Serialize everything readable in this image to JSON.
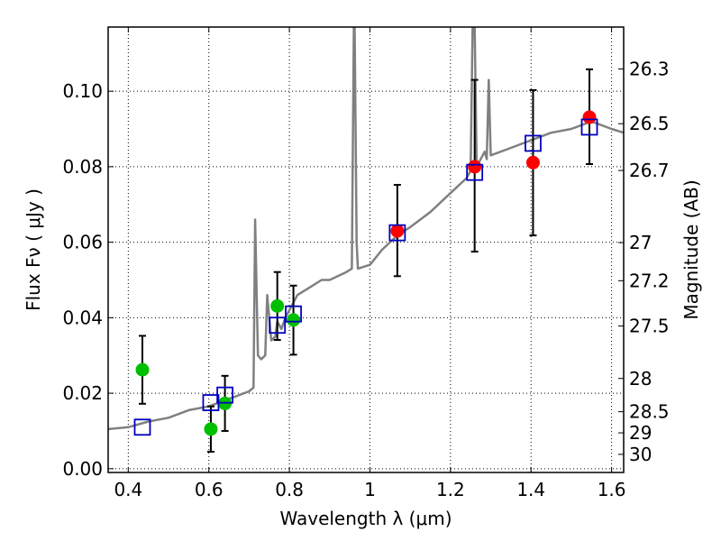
{
  "chart_data": {
    "type": "scatter",
    "xlabel": "Wavelength  λ (μm)",
    "ylabel": "Flux  Fν  ( μJy )",
    "y2label": "Magnitude (AB)",
    "xlim": [
      0.35,
      1.63
    ],
    "ylim": [
      -0.001,
      0.117
    ],
    "grid": true,
    "x_ticks": [
      0.4,
      0.6,
      0.8,
      1.0,
      1.2,
      1.4,
      1.6
    ],
    "x_tick_labels": [
      "0.4",
      "0.6",
      "0.8",
      "1",
      "1.2",
      "1.4",
      "1.6"
    ],
    "y_ticks": [
      0.0,
      0.02,
      0.04,
      0.06,
      0.08,
      0.1
    ],
    "y_tick_labels": [
      "0.00",
      "0.02",
      "0.04",
      "0.06",
      "0.08",
      "0.10"
    ],
    "y2_ticks": [
      {
        "label": "26.3",
        "flux": 0.1059
      },
      {
        "label": "26.5",
        "flux": 0.0914
      },
      {
        "label": "26.7",
        "flux": 0.079
      },
      {
        "label": "27",
        "flux": 0.0599
      },
      {
        "label": "27.2",
        "flux": 0.0498
      },
      {
        "label": "27.5",
        "flux": 0.0378
      },
      {
        "label": "28",
        "flux": 0.0239
      },
      {
        "label": "28.5",
        "flux": 0.0151
      },
      {
        "label": "29",
        "flux": 0.0095
      },
      {
        "label": "30",
        "flux": 0.0038
      }
    ],
    "colors": {
      "model": "#808080",
      "green_points": "#00bf00",
      "red_points": "#ff0000",
      "squares": "#0000bf",
      "errorbars": "#000000"
    },
    "series": [
      {
        "style": "line",
        "color": "#808080",
        "x": [
          0.35,
          0.4,
          0.45,
          0.5,
          0.55,
          0.6,
          0.65,
          0.7,
          0.711,
          0.715,
          0.722,
          0.73,
          0.74,
          0.745,
          0.755,
          0.765,
          0.77,
          0.78,
          0.79,
          0.8,
          0.82,
          0.85,
          0.88,
          0.9,
          0.92,
          0.94,
          0.955,
          0.96,
          0.962,
          0.967,
          0.97,
          1.0,
          1.03,
          1.05,
          1.07,
          1.1,
          1.15,
          1.2,
          1.24,
          1.25,
          1.255,
          1.26,
          1.265,
          1.27,
          1.28,
          1.285,
          1.29,
          1.295,
          1.3,
          1.35,
          1.4,
          1.45,
          1.5,
          1.55,
          1.6,
          1.63
        ],
        "y": [
          0.0105,
          0.011,
          0.0125,
          0.0135,
          0.0155,
          0.0165,
          0.0185,
          0.0205,
          0.0215,
          0.066,
          0.03,
          0.029,
          0.03,
          0.046,
          0.034,
          0.035,
          0.039,
          0.037,
          0.04,
          0.042,
          0.046,
          0.048,
          0.05,
          0.05,
          0.051,
          0.052,
          0.053,
          0.117,
          0.117,
          0.06,
          0.053,
          0.054,
          0.058,
          0.06,
          0.062,
          0.064,
          0.068,
          0.073,
          0.077,
          0.079,
          0.117,
          0.117,
          0.08,
          0.081,
          0.083,
          0.084,
          0.082,
          0.103,
          0.083,
          0.085,
          0.087,
          0.089,
          0.09,
          0.092,
          0.09,
          0.089
        ]
      },
      {
        "style": "markers-circle",
        "color": "#00bf00",
        "points": [
          {
            "x": 0.435,
            "y": 0.0262,
            "lo": 0.0172,
            "hi": 0.0352
          },
          {
            "x": 0.605,
            "y": 0.0105,
            "lo": 0.0045,
            "hi": 0.0165
          },
          {
            "x": 0.64,
            "y": 0.0173,
            "lo": 0.01,
            "hi": 0.0246
          },
          {
            "x": 0.77,
            "y": 0.0431,
            "lo": 0.0341,
            "hi": 0.0521
          },
          {
            "x": 0.81,
            "y": 0.0394,
            "lo": 0.0302,
            "hi": 0.0485
          }
        ]
      },
      {
        "style": "markers-circle",
        "color": "#ff0000",
        "points": [
          {
            "x": 1.068,
            "y": 0.063,
            "lo": 0.051,
            "hi": 0.0752
          },
          {
            "x": 1.26,
            "y": 0.08,
            "lo": 0.0575,
            "hi": 0.103
          },
          {
            "x": 1.405,
            "y": 0.0811,
            "lo": 0.0618,
            "hi": 0.1003
          },
          {
            "x": 1.545,
            "y": 0.0931,
            "lo": 0.0807,
            "hi": 0.1058
          }
        ]
      },
      {
        "style": "markers-square-open",
        "color": "#0000bf",
        "points": [
          {
            "x": 0.435,
            "y": 0.011
          },
          {
            "x": 0.605,
            "y": 0.0175
          },
          {
            "x": 0.64,
            "y": 0.0195
          },
          {
            "x": 0.77,
            "y": 0.038
          },
          {
            "x": 0.81,
            "y": 0.041
          },
          {
            "x": 1.068,
            "y": 0.0625
          },
          {
            "x": 1.26,
            "y": 0.0785
          },
          {
            "x": 1.405,
            "y": 0.0862
          },
          {
            "x": 1.545,
            "y": 0.0905
          }
        ]
      }
    ]
  }
}
